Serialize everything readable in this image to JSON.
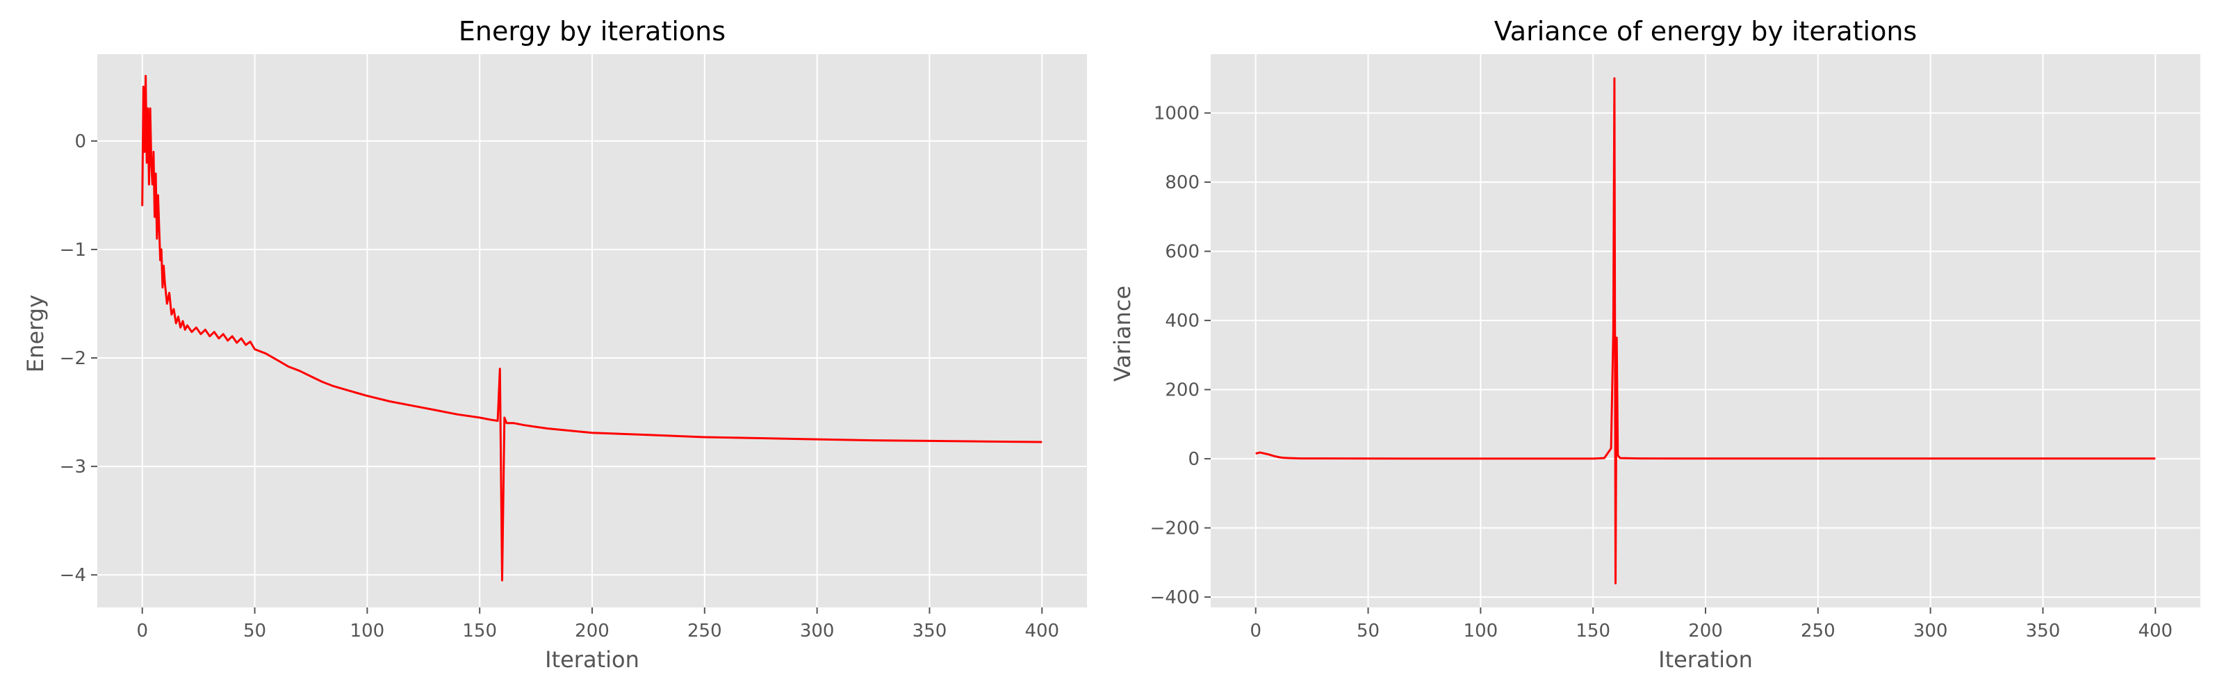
{
  "style": {
    "background": "#e5e5e5",
    "grid": "#ffffff",
    "tick_color": "#555555",
    "line_color": "#ff0000"
  },
  "chart_data": [
    {
      "type": "line",
      "title": "Energy by iterations",
      "xlabel": "Iteration",
      "ylabel": "Energy",
      "xlim": [
        -20,
        420
      ],
      "ylim": [
        -4.3,
        0.8
      ],
      "xticks": [
        0,
        50,
        100,
        150,
        200,
        250,
        300,
        350,
        400
      ],
      "yticks": [
        -4,
        -3,
        -2,
        -1,
        0
      ],
      "xtick_labels": [
        "0",
        "50",
        "100",
        "150",
        "200",
        "250",
        "300",
        "350",
        "400"
      ],
      "ytick_labels": [
        "−4",
        "−3",
        "−2",
        "−1",
        "0"
      ],
      "grid": true,
      "series": [
        {
          "color": "#ff0000",
          "x": [
            0,
            0.5,
            1,
            1.5,
            2,
            2.5,
            3,
            3.5,
            4,
            4.5,
            5,
            5.5,
            6,
            6.5,
            7,
            7.5,
            8,
            8.5,
            9,
            9.5,
            10,
            11,
            12,
            13,
            14,
            15,
            16,
            17,
            18,
            19,
            20,
            22,
            24,
            26,
            28,
            30,
            32,
            34,
            36,
            38,
            40,
            42,
            44,
            46,
            48,
            50,
            55,
            60,
            65,
            70,
            75,
            80,
            85,
            90,
            95,
            100,
            110,
            120,
            130,
            140,
            150,
            155,
            158,
            159,
            160,
            161,
            162,
            165,
            170,
            180,
            190,
            200,
            225,
            250,
            275,
            300,
            325,
            350,
            375,
            400
          ],
          "y": [
            -0.6,
            0.5,
            -0.1,
            0.6,
            -0.2,
            0.3,
            -0.4,
            0.3,
            -0.2,
            -0.4,
            -0.1,
            -0.7,
            -0.3,
            -0.9,
            -0.5,
            -0.8,
            -1.1,
            -1.0,
            -1.35,
            -1.15,
            -1.3,
            -1.5,
            -1.4,
            -1.6,
            -1.55,
            -1.68,
            -1.62,
            -1.72,
            -1.66,
            -1.74,
            -1.7,
            -1.76,
            -1.72,
            -1.78,
            -1.74,
            -1.8,
            -1.76,
            -1.82,
            -1.78,
            -1.84,
            -1.8,
            -1.86,
            -1.82,
            -1.88,
            -1.85,
            -1.92,
            -1.96,
            -2.02,
            -2.08,
            -2.12,
            -2.17,
            -2.22,
            -2.26,
            -2.29,
            -2.32,
            -2.35,
            -2.4,
            -2.44,
            -2.48,
            -2.52,
            -2.55,
            -2.57,
            -2.58,
            -2.1,
            -4.05,
            -2.55,
            -2.6,
            -2.6,
            -2.62,
            -2.65,
            -2.67,
            -2.69,
            -2.71,
            -2.73,
            -2.74,
            -2.75,
            -2.76,
            -2.765,
            -2.77,
            -2.775
          ]
        }
      ]
    },
    {
      "type": "line",
      "title": "Variance of energy by iterations",
      "xlabel": "Iteration",
      "ylabel": "Variance",
      "xlim": [
        -20,
        420
      ],
      "ylim": [
        -430,
        1170
      ],
      "xticks": [
        0,
        50,
        100,
        150,
        200,
        250,
        300,
        350,
        400
      ],
      "yticks": [
        -400,
        -200,
        0,
        200,
        400,
        600,
        800,
        1000
      ],
      "xtick_labels": [
        "0",
        "50",
        "100",
        "150",
        "200",
        "250",
        "300",
        "350",
        "400"
      ],
      "ytick_labels": [
        "−400",
        "−200",
        "0",
        "200",
        "400",
        "600",
        "800",
        "1000"
      ],
      "grid": true,
      "series": [
        {
          "color": "#ff0000",
          "x": [
            0,
            2,
            4,
            6,
            8,
            10,
            12,
            15,
            20,
            30,
            50,
            100,
            150,
            155,
            158,
            159,
            159.5,
            160,
            160.5,
            161,
            162,
            170,
            200,
            300,
            400
          ],
          "y": [
            15,
            18,
            15,
            12,
            8,
            5,
            3,
            2,
            1,
            1,
            0.5,
            0.3,
            0.3,
            2,
            30,
            370,
            1100,
            -360,
            350,
            10,
            2,
            1,
            0.5,
            0.5,
            0.5
          ]
        }
      ]
    }
  ]
}
